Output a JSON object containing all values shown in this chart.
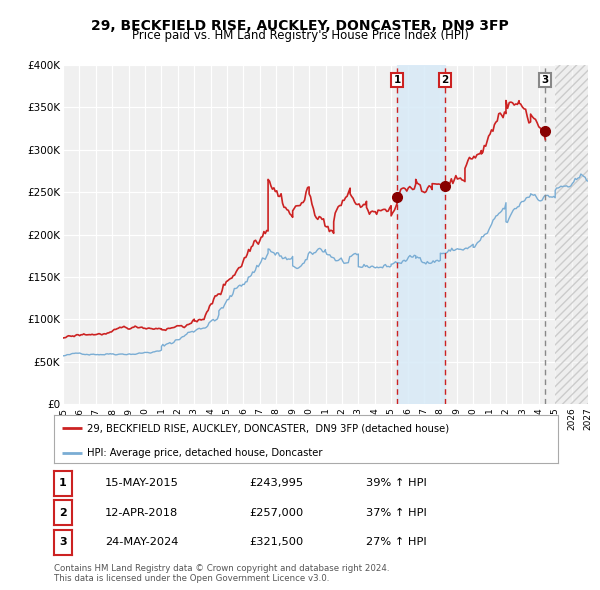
{
  "title": "29, BECKFIELD RISE, AUCKLEY, DONCASTER, DN9 3FP",
  "subtitle": "Price paid vs. HM Land Registry's House Price Index (HPI)",
  "xlim": [
    1995,
    2027
  ],
  "ylim": [
    0,
    400000
  ],
  "yticks": [
    0,
    50000,
    100000,
    150000,
    200000,
    250000,
    300000,
    350000,
    400000
  ],
  "ytick_labels": [
    "£0",
    "£50K",
    "£100K",
    "£150K",
    "£200K",
    "£250K",
    "£300K",
    "£350K",
    "£400K"
  ],
  "xticks": [
    1995,
    1996,
    1997,
    1998,
    1999,
    2000,
    2001,
    2002,
    2003,
    2004,
    2005,
    2006,
    2007,
    2008,
    2009,
    2010,
    2011,
    2012,
    2013,
    2014,
    2015,
    2016,
    2017,
    2018,
    2019,
    2020,
    2021,
    2022,
    2023,
    2024,
    2025,
    2026,
    2027
  ],
  "red_line_color": "#cc2222",
  "blue_line_color": "#7aadd4",
  "blue_shade_color": "#d8eaf7",
  "sale_dates": [
    2015.37,
    2018.28,
    2024.39
  ],
  "sale_values": [
    243995,
    257000,
    321500
  ],
  "sale_labels": [
    "1",
    "2",
    "3"
  ],
  "vline_colors": [
    "#cc2222",
    "#cc2222",
    "#888888"
  ],
  "vline_styles": [
    "--",
    "--",
    "--"
  ],
  "marker_color": "#880000",
  "legend_label_red": "29, BECKFIELD RISE, AUCKLEY, DONCASTER,  DN9 3FP (detached house)",
  "legend_label_blue": "HPI: Average price, detached house, Doncaster",
  "table_rows": [
    {
      "num": "1",
      "date": "15-MAY-2015",
      "price": "£243,995",
      "pct": "39% ↑ HPI"
    },
    {
      "num": "2",
      "date": "12-APR-2018",
      "price": "£257,000",
      "pct": "37% ↑ HPI"
    },
    {
      "num": "3",
      "date": "24-MAY-2024",
      "price": "£321,500",
      "pct": "27% ↑ HPI"
    }
  ],
  "footnote": "Contains HM Land Registry data © Crown copyright and database right 2024.\nThis data is licensed under the Open Government Licence v3.0.",
  "background_color": "#ffffff",
  "plot_bg_color": "#f0f0f0",
  "hatch_start": 2025,
  "hatch_end": 2027
}
